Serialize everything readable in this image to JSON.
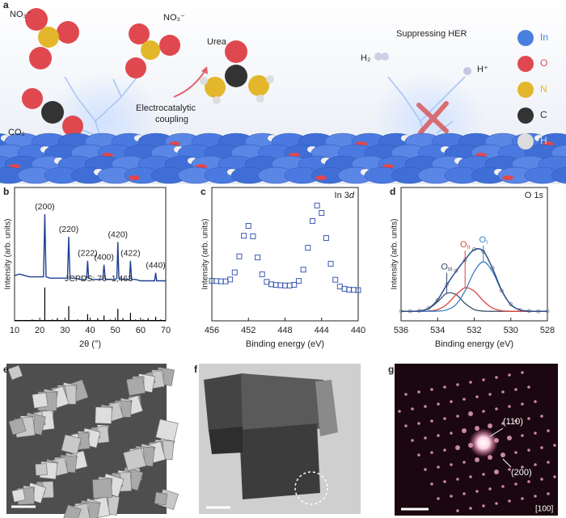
{
  "panels": {
    "a": {
      "label": "a",
      "no3_left": "NO₃⁻",
      "no3_right": "NO₃⁻",
      "co2": "CO₂",
      "urea": "Urea",
      "coupling_1": "Electrocatalytic",
      "coupling_2": "coupling",
      "her": "Suppressing HER",
      "h2": "H₂",
      "hplus": "H⁺",
      "legend": [
        {
          "name": "In",
          "color": "#4a7fe0"
        },
        {
          "name": "O",
          "color": "#e0484f"
        },
        {
          "name": "N",
          "color": "#e3b62b"
        },
        {
          "name": "C",
          "color": "#333333"
        },
        {
          "name": "H",
          "color": "#dcdcdc"
        }
      ]
    },
    "e": {
      "label": "e"
    },
    "f": {
      "label": "f"
    },
    "g": {
      "label": "g",
      "spot_110": "(110)",
      "spot_200": "(200)",
      "zone": "[100]"
    }
  },
  "chart_data": [
    {
      "type": "line",
      "panel": "b",
      "xlabel": "2θ (°)",
      "ylabel": "Intensity (arb. units)",
      "color": "#1f3f8f",
      "xlim": [
        10,
        70
      ],
      "xticks": [
        10,
        20,
        30,
        40,
        50,
        60,
        70
      ],
      "ylim": [
        0,
        100
      ],
      "x": [
        10,
        12,
        14,
        16,
        18,
        20,
        21.5,
        22,
        22.5,
        24,
        26,
        28,
        30,
        31,
        31.5,
        32,
        34,
        36,
        38,
        38.6,
        39,
        39.4,
        41,
        43,
        45,
        45.5,
        46,
        48,
        50,
        50.6,
        51,
        51.4,
        53,
        55,
        55.6,
        56,
        56.4,
        58,
        60,
        62,
        64,
        65.6,
        66,
        66.4,
        68,
        70
      ],
      "values": [
        34,
        35,
        34,
        33,
        33,
        33,
        33,
        80,
        33,
        32,
        32,
        32,
        32,
        32,
        63,
        32,
        32,
        31,
        31,
        32,
        45,
        32,
        31,
        31,
        31,
        42,
        31,
        31,
        31,
        32,
        59,
        32,
        31,
        31,
        31,
        45,
        31,
        31,
        30,
        30,
        30,
        30,
        36,
        30,
        30,
        30
      ],
      "reference": {
        "label": "JCPDS: 76–1,463",
        "color": "#000000",
        "x": [
          17,
          22,
          25,
          27,
          31.5,
          35,
          39,
          43,
          45.5,
          48,
          51,
          53,
          56,
          58,
          61,
          63,
          66,
          68
        ],
        "values": [
          1,
          25,
          1,
          2,
          11,
          1,
          5,
          2,
          4,
          1,
          9,
          2,
          6,
          1,
          1,
          2,
          3,
          1
        ],
        "peak_labels": [
          null,
          "(200)",
          null,
          null,
          "(220)",
          null,
          "(222)",
          null,
          "(400)",
          null,
          "(420)",
          null,
          "(422)",
          null,
          null,
          null,
          "(440)",
          null
        ]
      }
    },
    {
      "type": "scatter",
      "panel": "c",
      "annotation": {
        "text": "In 3",
        "italic": "d"
      },
      "xlabel": "Binding energy (eV)",
      "ylabel": "Intensity (arb. units)",
      "color": "#3a5bb0",
      "xlim": [
        456,
        440
      ],
      "xticks": [
        456,
        452,
        448,
        444,
        440
      ],
      "ylim": [
        0,
        100
      ],
      "x": [
        456,
        455.5,
        455,
        454.5,
        454,
        453.5,
        453,
        452.5,
        452,
        451.5,
        451,
        450.5,
        450,
        449.5,
        449,
        448.5,
        448,
        447.5,
        447,
        446.5,
        446,
        445.5,
        445,
        444.5,
        444,
        443.5,
        443,
        442.5,
        442,
        441.5,
        441,
        440.5,
        440
      ],
      "values": [
        30,
        29.8,
        29.6,
        29.6,
        31,
        36.3,
        48.3,
        63.8,
        71.2,
        63.4,
        47.5,
        34.9,
        29.2,
        27.4,
        26.9,
        26.7,
        26.5,
        26.5,
        27,
        29.9,
        38.4,
        54.8,
        74.9,
        86.5,
        80.9,
        62.1,
        42.8,
        30.8,
        25.7,
        24,
        23.4,
        23.2,
        23
      ]
    },
    {
      "type": "line",
      "panel": "d",
      "annotation": {
        "text": "O 1",
        "italic": "s"
      },
      "xlabel": "Binding energy (eV)",
      "ylabel": "Intensity (arb. units)",
      "xlim": [
        536,
        528
      ],
      "xticks": [
        536,
        534,
        532,
        530,
        528
      ],
      "ylim": [
        0,
        140
      ],
      "x": [
        536,
        535.5,
        535,
        534.5,
        534,
        533.5,
        533,
        532.5,
        532,
        531.5,
        531,
        530.5,
        530,
        529.5,
        529,
        528.5,
        528
      ],
      "series": [
        {
          "color": "#9a9a9a",
          "marker": "circle",
          "values": [
            10.3,
            10.1,
            10.6,
            13.4,
            21.6,
            38.2,
            52.5,
            63.8,
            75.2,
            72.6,
            55.4,
            31.6,
            17.4,
            11.2,
            10.4,
            9.9,
            10.1
          ]
        },
        {
          "label": "O",
          "label_sub": "III",
          "color": "#3b4a6b",
          "values": [
            10,
            10,
            10.4,
            12.7,
            20.1,
            28.9,
            27.6,
            18.2,
            11.9,
            10.2,
            10,
            10,
            10,
            10,
            10,
            10,
            10
          ]
        },
        {
          "label": "O",
          "label_sub": "II",
          "color": "#d9443f",
          "values": [
            10,
            10,
            10,
            10.3,
            11.8,
            17.3,
            27.3,
            34.7,
            31.2,
            20.9,
            13.4,
            10.6,
            10.1,
            10,
            10,
            10,
            10
          ]
        },
        {
          "label": "O",
          "label_sub": "I",
          "color": "#3a7fc1",
          "values": [
            10,
            10,
            10,
            10,
            10.2,
            11.5,
            17,
            31.4,
            51.6,
            62,
            51.6,
            31.4,
            17,
            11.5,
            10.2,
            10,
            10
          ]
        },
        {
          "color": "#2c4e8a",
          "values": [
            10,
            10,
            10.4,
            13,
            22.1,
            37.7,
            51.9,
            64.3,
            74.7,
            73.1,
            55,
            32,
            17.1,
            11.5,
            10.2,
            10,
            10
          ]
        }
      ]
    }
  ]
}
